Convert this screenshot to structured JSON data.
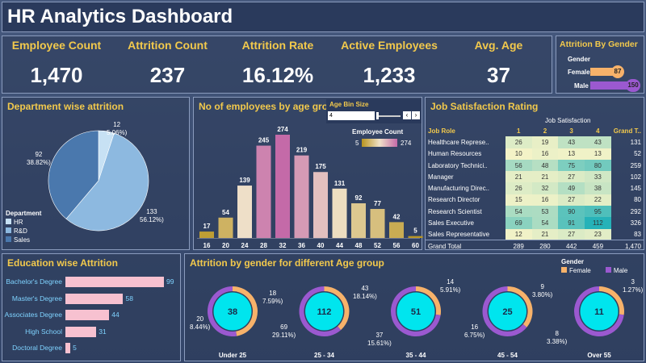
{
  "title": "HR Analytics Dashboard",
  "kpis": [
    {
      "label": "Employee Count",
      "value": "1,470"
    },
    {
      "label": "Attrition Count",
      "value": "237"
    },
    {
      "label": "Attrition Rate",
      "value": "16.12%"
    },
    {
      "label": "Active Employees",
      "value": "1,233"
    },
    {
      "label": "Avg. Age",
      "value": "37"
    }
  ],
  "gender": {
    "title": "Attrition By Gender",
    "header": "Gender",
    "rows": [
      {
        "label": "Female",
        "value": 87
      },
      {
        "label": "Male",
        "value": 150
      }
    ]
  },
  "dept": {
    "title": "Department wise attrition",
    "legend_title": "Department",
    "legend": [
      "HR",
      "R&D",
      "Sales"
    ],
    "labels": [
      {
        "n": "12",
        "p": "5.06%)"
      },
      {
        "n": "92",
        "p": "38.82%)"
      },
      {
        "n": "133",
        "p": "56.12%)"
      }
    ]
  },
  "age": {
    "title": "No of employees by age group",
    "bin_title": "Age Bin Size",
    "bin_value": "4",
    "ec_title": "Employee Count",
    "ec_min": "5",
    "ec_max": "274"
  },
  "js": {
    "title": "Job Satisfaction Rating",
    "top": "Job Satisfaction",
    "head": [
      "Job Role",
      "1",
      "2",
      "3",
      "4",
      "Grand T.."
    ],
    "rows": [
      [
        "Healthcare Represe..",
        "26",
        "19",
        "43",
        "43",
        "131"
      ],
      [
        "Human Resources",
        "10",
        "16",
        "13",
        "13",
        "52"
      ],
      [
        "Laboratory Technici..",
        "56",
        "48",
        "75",
        "80",
        "259"
      ],
      [
        "Manager",
        "21",
        "21",
        "27",
        "33",
        "102"
      ],
      [
        "Manufacturing Direc..",
        "26",
        "32",
        "49",
        "38",
        "145"
      ],
      [
        "Research Director",
        "15",
        "16",
        "27",
        "22",
        "80"
      ],
      [
        "Research Scientist",
        "54",
        "53",
        "90",
        "95",
        "292"
      ],
      [
        "Sales Executive",
        "69",
        "54",
        "91",
        "112",
        "326"
      ],
      [
        "Sales Representative",
        "12",
        "21",
        "27",
        "23",
        "83"
      ]
    ],
    "total": [
      "Grand Total",
      "289",
      "280",
      "442",
      "459",
      "1,470"
    ]
  },
  "edu": {
    "title": "Education  wise Attrition"
  },
  "ag": {
    "title": "Attrition by gender for different Age group",
    "legend_title": "Gender",
    "legend": [
      "Female",
      "Male"
    ],
    "groups": [
      {
        "name": "Under 25",
        "center": "38",
        "a": "18",
        "ap": "7.59%)",
        "b": "20",
        "bp": "8.44%)"
      },
      {
        "name": "25 - 34",
        "center": "112",
        "a": "43",
        "ap": "18.14%)",
        "b": "69",
        "bp": "29.11%)"
      },
      {
        "name": "35 - 44",
        "center": "51",
        "a": "14",
        "ap": "5.91%)",
        "b": "37",
        "bp": "15.61%)"
      },
      {
        "name": "45 - 54",
        "center": "25",
        "a": "9",
        "ap": "3.80%)",
        "b": "16",
        "bp": "6.75%)"
      },
      {
        "name": "Over 55",
        "center": "11",
        "a": "3",
        "ap": "1.27%)",
        "b": "8",
        "bp": "3.38%)"
      }
    ]
  },
  "chart_data": [
    {
      "type": "pie",
      "title": "Department wise attrition",
      "categories": [
        "HR",
        "R&D",
        "Sales"
      ],
      "values": [
        12,
        133,
        92
      ],
      "percent": [
        5.06,
        56.12,
        38.82
      ]
    },
    {
      "type": "bar",
      "title": "No of employees by age group",
      "categories": [
        "16",
        "20",
        "24",
        "28",
        "32",
        "36",
        "40",
        "44",
        "48",
        "52",
        "56",
        "60"
      ],
      "values": [
        17,
        54,
        139,
        245,
        274,
        219,
        175,
        131,
        92,
        77,
        42,
        5
      ],
      "ylim": [
        0,
        274
      ]
    },
    {
      "type": "bar",
      "title": "Education  wise Attrition",
      "categories": [
        "Bachelor's Degree",
        "Master's Degree",
        "Associates Degree",
        "High School",
        "Doctoral Degree"
      ],
      "values": [
        99,
        58,
        44,
        31,
        5
      ],
      "xlim": [
        0,
        99
      ]
    },
    {
      "type": "bar",
      "title": "Attrition By Gender",
      "categories": [
        "Female",
        "Male"
      ],
      "values": [
        87,
        150
      ]
    }
  ],
  "colors": {
    "accent": "#f2c94c",
    "female": "#f7b26a",
    "male": "#9b59d0",
    "cyan": "#00e5ee",
    "pink": "#f7c1d0"
  }
}
